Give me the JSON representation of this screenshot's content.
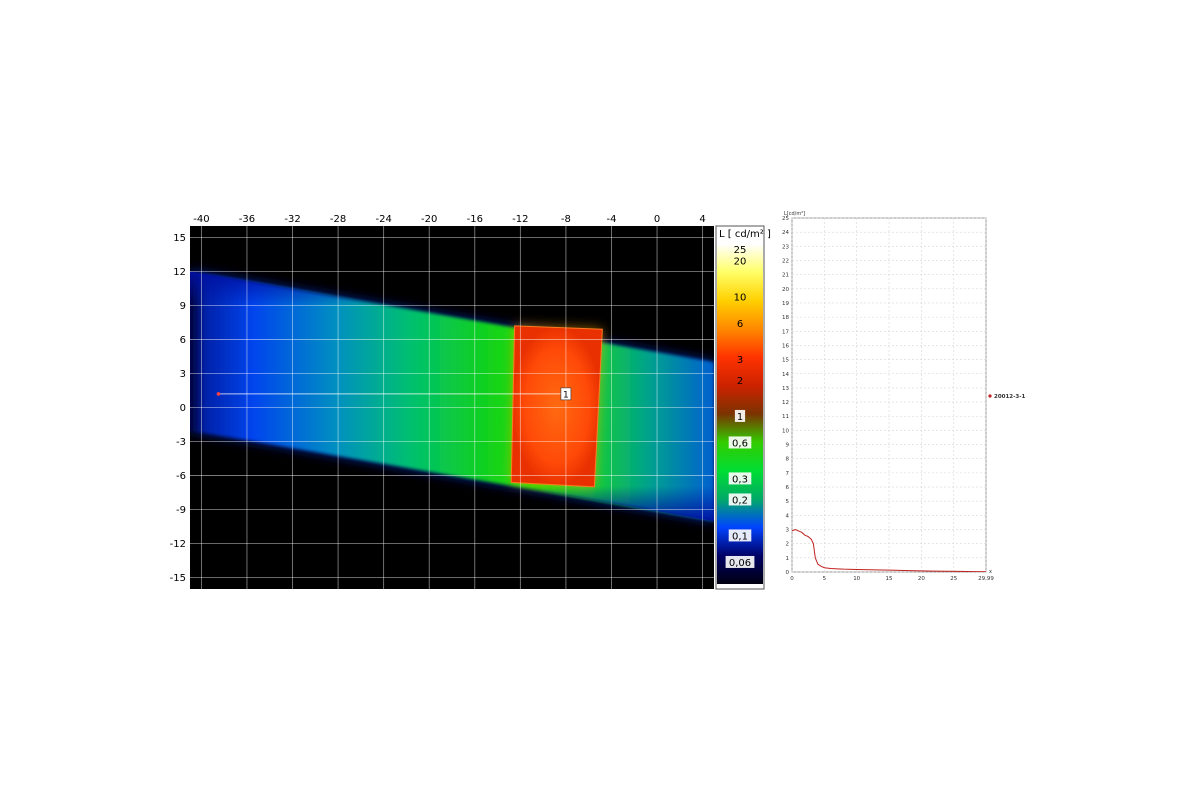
{
  "chart_data": [
    {
      "type": "heatmap",
      "title": "",
      "xlabel": "",
      "ylabel": "",
      "xlim": [
        -41,
        5
      ],
      "ylim": [
        -16,
        16
      ],
      "x_ticks": [
        -40,
        -36,
        -32,
        -28,
        -24,
        -20,
        -16,
        -12,
        -8,
        -4,
        0,
        4
      ],
      "y_ticks": [
        15,
        12,
        9,
        6,
        3,
        0,
        -3,
        -6,
        -9,
        -12,
        -15
      ],
      "grid": true,
      "colorbar": {
        "title": "L [ cd/m² ]",
        "labels": [
          "25",
          "20",
          "10",
          "6",
          "3",
          "2",
          "1",
          "0,6",
          "0,3",
          "0,2",
          "0,1",
          "0,06"
        ],
        "values": [
          25,
          20,
          10,
          6,
          3,
          2,
          1,
          0.6,
          0.3,
          0.2,
          0.1,
          0.06
        ],
        "colors": [
          "#ffffff",
          "#ffff66",
          "#ffd000",
          "#ff8800",
          "#ff3300",
          "#cc2200",
          "#7a3300",
          "#33cc00",
          "#00dd33",
          "#00aa66",
          "#0044ff",
          "#000066",
          "#000011"
        ]
      },
      "road_band": {
        "left_x": -41,
        "right_x": 5,
        "top_left_y": 12,
        "bottom_left_y": -2,
        "top_right_y": 4,
        "bottom_right_y": -10
      },
      "bright_region": {
        "corners_xy": [
          [
            -12.5,
            7.2
          ],
          [
            -4.8,
            6.9
          ],
          [
            -5.5,
            -7.0
          ],
          [
            -12.8,
            -6.6
          ]
        ],
        "approx_luminance": 3
      },
      "measurement_line": {
        "label": "1",
        "from": [
          -38.5,
          1.2
        ],
        "to": [
          -8,
          1.2
        ]
      },
      "colors": {
        "background": "#000000",
        "grid": "#ffffff"
      }
    },
    {
      "type": "line",
      "title": "",
      "ylabel": "L[cd/m²]",
      "xlabel": "x",
      "xlim": [
        0,
        29.99
      ],
      "ylim": [
        0,
        25
      ],
      "x_ticks": [
        "0",
        "5",
        "10",
        "15",
        "20",
        "25",
        "29,99"
      ],
      "x_tick_values": [
        0,
        5,
        10,
        15,
        20,
        25,
        29.99
      ],
      "y_ticks": [
        0,
        1,
        2,
        3,
        4,
        5,
        6,
        7,
        8,
        9,
        10,
        11,
        12,
        13,
        14,
        15,
        16,
        17,
        18,
        19,
        20,
        21,
        22,
        23,
        24,
        25
      ],
      "grid": true,
      "legend_position": "right",
      "series": [
        {
          "name": "20012-3-1",
          "color": "#c02020",
          "x": [
            0,
            0.5,
            1,
            1.5,
            2,
            2.5,
            3,
            3.3,
            3.6,
            4,
            4.5,
            5,
            6,
            7,
            8,
            10,
            12,
            14,
            16,
            18,
            20,
            22,
            24,
            26,
            28,
            29.99
          ],
          "y": [
            2.9,
            3.0,
            2.9,
            2.8,
            2.6,
            2.5,
            2.3,
            2.0,
            1.0,
            0.55,
            0.4,
            0.3,
            0.25,
            0.22,
            0.2,
            0.18,
            0.16,
            0.14,
            0.12,
            0.1,
            0.08,
            0.06,
            0.05,
            0.04,
            0.03,
            0.02
          ]
        }
      ]
    }
  ]
}
